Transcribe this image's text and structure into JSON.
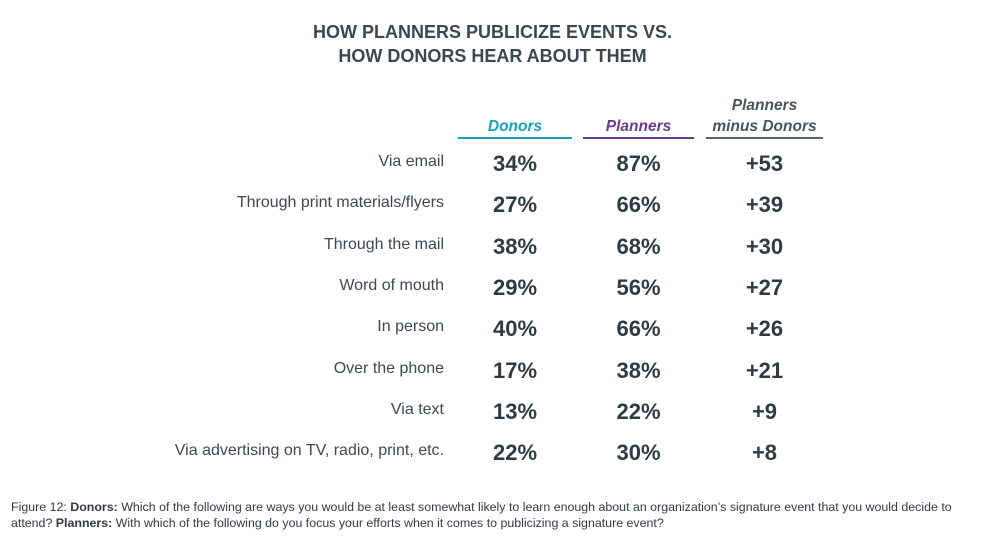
{
  "title_line1": "HOW PLANNERS PUBLICIZE EVENTS VS.",
  "title_line2": "HOW DONORS HEAR ABOUT THEM",
  "columns": {
    "donors": "Donors",
    "planners": "Planners",
    "diff_line1": "Planners",
    "diff_line2": "minus Donors"
  },
  "colors": {
    "donors": "#14a4b4",
    "planners": "#6b3a8f",
    "diff": "#4a535c"
  },
  "chart_data": {
    "type": "table",
    "title": "HOW PLANNERS PUBLICIZE EVENTS VS. HOW DONORS HEAR ABOUT THEM",
    "columns": [
      "Donors",
      "Planners",
      "Planners minus Donors"
    ],
    "rows": [
      {
        "label": "Via email",
        "donors": "34%",
        "planners": "87%",
        "diff": "+53"
      },
      {
        "label": "Through print materials/flyers",
        "donors": "27%",
        "planners": "66%",
        "diff": "+39"
      },
      {
        "label": "Through the mail",
        "donors": "38%",
        "planners": "68%",
        "diff": "+30"
      },
      {
        "label": "Word of mouth",
        "donors": "29%",
        "planners": "56%",
        "diff": "+27"
      },
      {
        "label": "In person",
        "donors": "40%",
        "planners": "66%",
        "diff": "+26"
      },
      {
        "label": "Over the phone",
        "donors": "17%",
        "planners": "38%",
        "diff": "+21"
      },
      {
        "label": "Via text",
        "donors": "13%",
        "planners": "22%",
        "diff": "+9"
      },
      {
        "label": "Via advertising on TV, radio, print, etc.",
        "donors": "22%",
        "planners": "30%",
        "diff": "+8"
      }
    ]
  },
  "footnote": {
    "figure": "Figure 12:",
    "donors_label": "Donors:",
    "donors_text": "Which of the following are ways you would be at least somewhat likely to learn enough about an organization’s signature event that you would decide to attend?",
    "planners_label": "Planners:",
    "planners_text": "With which of the following do you focus your efforts when it comes to publicizing a signature event?"
  }
}
